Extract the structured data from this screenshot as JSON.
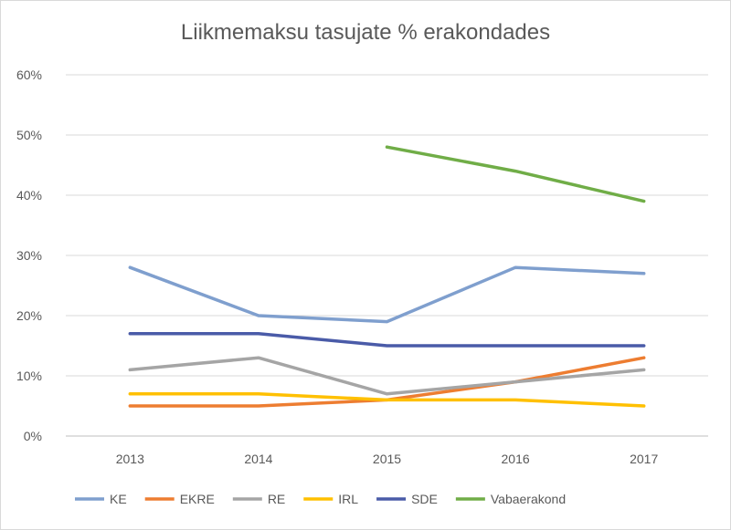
{
  "chart_data": {
    "type": "line",
    "title": "Liikmemaksu tasujate % erakondades",
    "categories": [
      "2013",
      "2014",
      "2015",
      "2016",
      "2017"
    ],
    "ylim": [
      0,
      60
    ],
    "y_ticks": [
      "0%",
      "10%",
      "20%",
      "30%",
      "40%",
      "50%",
      "60%"
    ],
    "y_tick_values": [
      0,
      10,
      20,
      30,
      40,
      50,
      60
    ],
    "grid": true,
    "legend_position": "bottom",
    "series": [
      {
        "name": "KE",
        "color": "#7f9fce",
        "values": [
          28,
          20,
          19,
          28,
          27
        ]
      },
      {
        "name": "EKRE",
        "color": "#ed7d31",
        "values": [
          5,
          5,
          6,
          9,
          13
        ]
      },
      {
        "name": "RE",
        "color": "#a5a5a5",
        "values": [
          11,
          13,
          7,
          9,
          11
        ]
      },
      {
        "name": "IRL",
        "color": "#ffc000",
        "values": [
          7,
          7,
          6,
          6,
          5
        ]
      },
      {
        "name": "SDE",
        "color": "#4a5ba8",
        "values": [
          17,
          17,
          15,
          15,
          15
        ]
      },
      {
        "name": "Vabaerakond",
        "color": "#70ad47",
        "values": [
          null,
          null,
          48,
          44,
          39
        ]
      }
    ]
  }
}
